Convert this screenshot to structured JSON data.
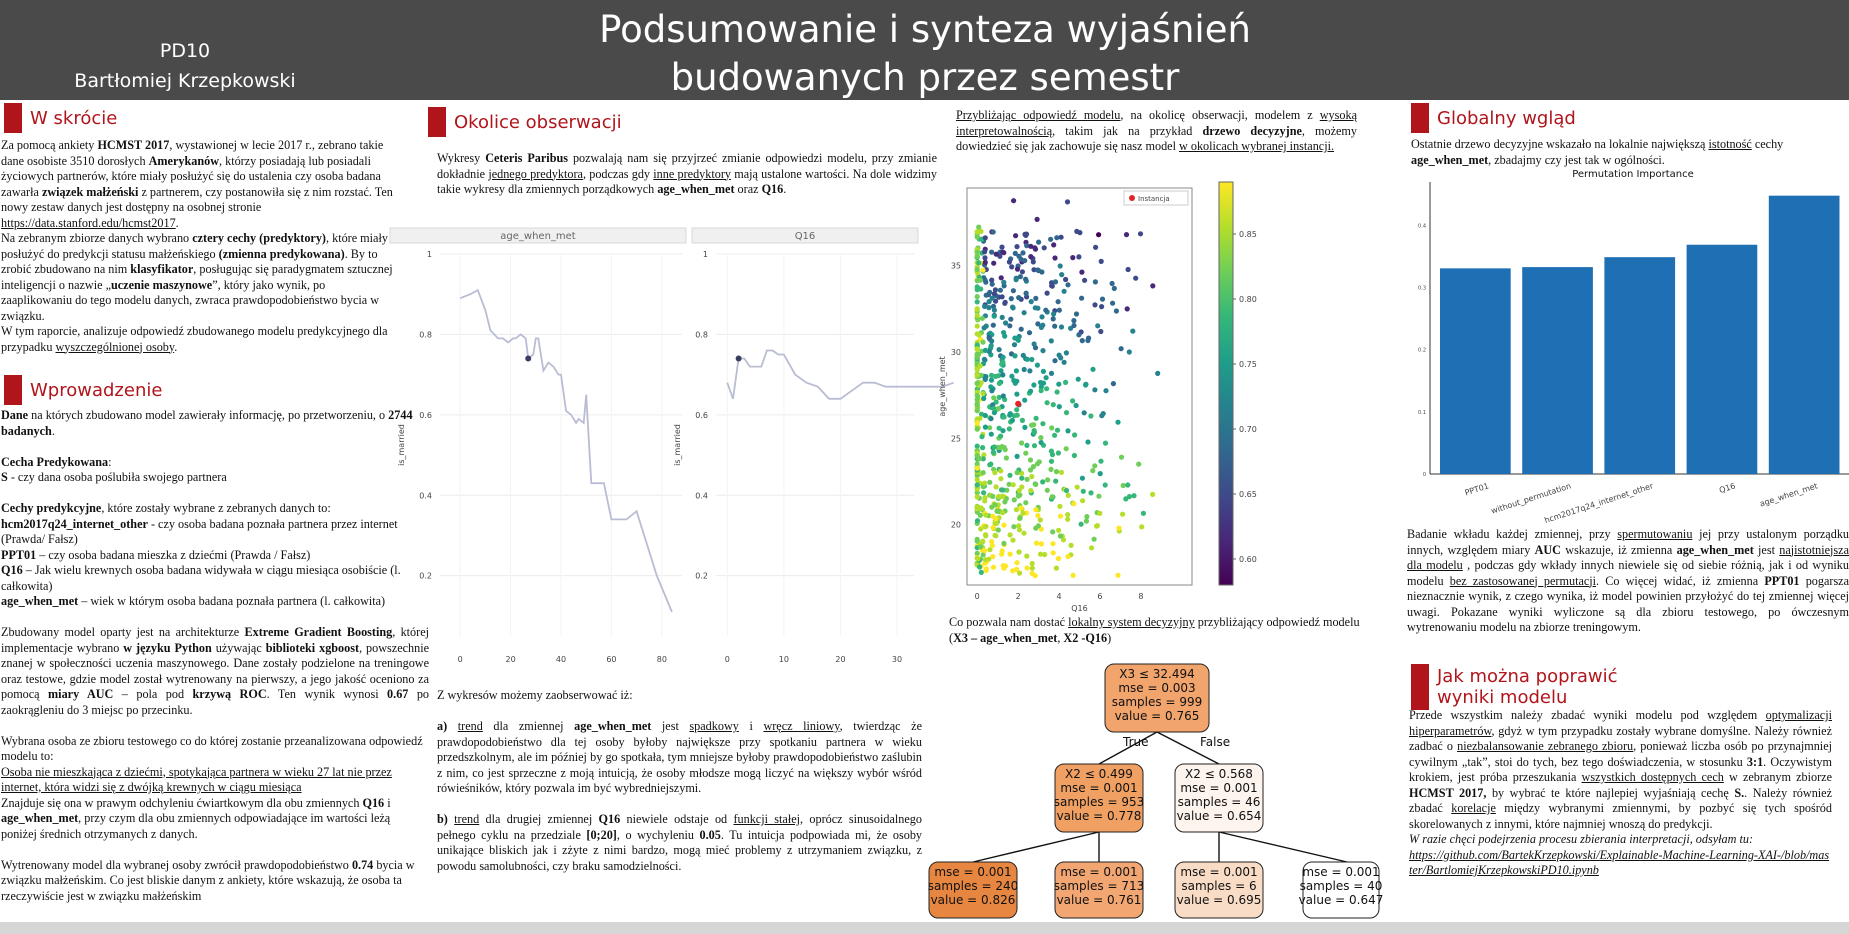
{
  "header": {
    "code": "PD10",
    "author": "Bartłomiej Krzepkowski",
    "title_line1": "Podsumowanie i synteza wyjaśnień",
    "title_line2": "budowanych przez semestr"
  },
  "sections": {
    "skrocie": "W skrócie",
    "wprowadzenie": "Wprowadzenie",
    "okolice": "Okolice obserwacji",
    "globalny": "Globalny wgląd",
    "poprawic_1": "Jak można poprawić",
    "poprawic_2": "wyniki modelu"
  },
  "skrocie": {
    "p1": [
      "Za pomocą ankiety ",
      "HCMST 2017",
      ", wystawionej w lecie 2017 r., zebrano takie dane osobiste 3510 dorosłych ",
      "Amerykanów",
      ", którzy posiadają lub posiadali życiowych partnerów, które miały posłużyć się do ustalenia czy osoba badana zawarła ",
      "związek małżeński",
      " z partnerem, czy postanowiła się z nim rozstać. Ten nowy zestaw danych jest dostępny na osobnej stronie "
    ],
    "link": "https://data.stanford.edu/hcmst2017",
    "p2": [
      "Na zebranym zbiorze danych wybrano ",
      "cztery cechy (predyktory)",
      ", które miały posłużyć do predykcji statusu małżeńskiego ",
      "(zmienna predykowana)",
      ". By to zrobić zbudowano na nim ",
      "klasyfikator",
      ", posługując się paradygmatem sztucznej inteligencji o nazwie „",
      "uczenie maszynowe",
      "”, który jako wynik, po zaaplikowaniu do tego modelu danych, zwraca prawdopodobieństwo bycia w związku."
    ],
    "p3a": "W tym raporcie, analizuje odpowiedź zbudowanego modelu predykcyjnego dla przypadku ",
    "p3b": "wyszczególnionej osoby",
    "p3c": "."
  },
  "wprowadzenie": {
    "dane": [
      "Dane",
      " na których zbudowano model zawierały informację, po przetworzeniu, o ",
      "2744 badanych",
      "."
    ],
    "cecha_title": "Cecha Predykowana",
    "cecha_s": [
      "S",
      " -  czy dana osoba poślubiła swojego partnera"
    ],
    "predyktory_intro": [
      "Cechy predykcyjne",
      ", które zostały wybrane z zebranych danych to:"
    ],
    "pred": [
      [
        "hcm2017q24_internet_other",
        " - czy osoba badana poznała partnera przez internet (Prawda/  Fałsz)"
      ],
      [
        "PPT01",
        " – czy osoba badana mieszka z dziećmi (Prawda / Fałsz)"
      ],
      [
        "Q16",
        " – Jak wielu krewnych osoba badana widywała w ciągu miesiąca osobiście (l. całkowita)"
      ],
      [
        "age_when_met",
        " – wiek w którym osoba badana poznała partnera (l. całkowita)"
      ]
    ],
    "model": [
      "Zbudowany model oparty jest na architekturze ",
      "Extreme Gradient Boosting",
      ", której implementacje wybrano ",
      "w języku Python",
      " używając ",
      "biblioteki xgboost",
      ", powszechnie znanej w społeczności uczenia maszynowego. Dane zostały podzielone na treningowe oraz testowe, gdzie model został wytrenowany na pierwszy, a jego jakość oceniono za pomocą ",
      "miary AUC",
      " – pola pod ",
      "krzywą ROC",
      ". Ten wynik wynosi ",
      "0.67",
      " po zaokrągleniu do 3 miejsc po przecinku."
    ],
    "osoba_intro": "Wybrana osoba ze zbioru testowego co do której zostanie przeanalizowana odpowiedź modelu to:",
    "osoba_desc": "Osoba nie mieszkająca z dziećmi, spotykająca partnera w wieku 27 lat nie przez internet, która widzi się z dwójką krewnych w ciągu miesiąca",
    "osoba_pos": [
      "Znajduje się ona w prawym odchyleniu ćwiartkowym dla obu zmiennych ",
      "Q16",
      " i ",
      "age_when_met",
      ", przy czym dla obu zmiennych odpowiadające im wartości leżą poniżej średnich otrzymanych z danych."
    ],
    "wynik": [
      "Wytrenowany model dla wybranej osoby zwrócił prawdopodobieństwo ",
      "0.74",
      " bycia w związku małżeńskim. Co jest bliskie danym z ankiety, które wskazują, że osoba ta rzeczywiście jest w związku małżeńskim"
    ]
  },
  "okolice": {
    "intro": [
      "Wykresy ",
      "Ceteris Paribus",
      " pozwalają nam się przyjrzeć zmianie odpowiedzi modelu, przy zmianie dokładnie ",
      "jednego predyktora",
      ", podczas gdy ",
      "inne predyktory",
      " mają ustalone wartości. Na dole widzimy takie wykresy dla zmiennych porządkowych ",
      "age_when_met",
      " oraz ",
      "Q16",
      "."
    ],
    "wnioski_intro": "Z wykresów możemy zaobserwować iż:",
    "a": [
      "a) ",
      "trend",
      " dla zmiennej ",
      "age_when_met",
      " jest ",
      "spadkowy",
      " i ",
      "wręcz liniowy",
      ", twierdząc że prawdopodobieństwo dla tej osoby byłoby największe przy spotkaniu partnera w wieku przedszkolnym, ale im później by go spotkała, tym mniejsze byłoby prawdopodobieństwo zaślubin z nim, co jest sprzeczne z moją intuicją, że osoby młodsze mogą liczyć na większy wybór wśród rówieśników, który pozwala im być wybredniejszymi."
    ],
    "b": [
      "b) ",
      "trend",
      " dla drugiej zmiennej ",
      "Q16",
      " niewiele odstaje od ",
      "funkcji stałej",
      ", oprócz sinusoidalnego pełnego cyklu na przedziale  ",
      "[0;20]",
      ", o wychyleniu ",
      "0.05",
      ". Tu intuicja podpowiada mi, że osoby unikające bliskich jak i zżyte z nimi bardzo, mogą mieć problemy z utrzymaniem związku, z powodu samolubności, czy braku samodzielności."
    ]
  },
  "lokalny": {
    "intro": [
      "Przybliżając odpowiedź modelu",
      ", na okolicę obserwacji, modelem z ",
      "wysoką interpretowalnością",
      ", takim jak na przykład ",
      "drzewo decyzyjne",
      ", możemy dowiedzieć się jak zachowuje się nasz model ",
      "w okolicach wybranej instancji."
    ],
    "caption": [
      "Co pozwala nam dostać ",
      "lokalny system decyzyjny",
      " przybliżający odpowiedź modelu (",
      "X3 – age_when_met",
      ", ",
      "X2 -Q16",
      ")"
    ]
  },
  "globalny": {
    "intro": [
      "Ostatnie drzewo decyzyjne wskazało na lokalnie największą ",
      "istotność",
      " cechy ",
      "age_when_met",
      ", zbadajmy czy jest tak w ogólności."
    ],
    "analysis": [
      "Badanie wkładu każdej zmiennej, przy ",
      "spermutowaniu",
      " jej przy ustalonym porządku innych, względem miary ",
      "AUC",
      " wskazuje, iż zmienna ",
      "age_when_met",
      " jest ",
      "najistotniejsza dla modelu",
      " , podczas gdy wkłady innych niewiele się od siebie różnią, jak i od wyniku modelu ",
      "bez zastosowanej permutacji",
      ". Co więcej widać, iż zmienna ",
      "PPT01",
      " pogarsza nieznacznie wynik, z czego wynika, iż model powinien przyłożyć do tej zmiennej więcej uwagi. Pokazane wyniki wyliczone są dla zbioru testowego, po ówczesnym wytrenowaniu modelu na zbiorze treningowym."
    ]
  },
  "poprawic": {
    "text": [
      "Przede wszystkim należy zbadać wyniki modelu pod względem ",
      "optymalizacji hiperparametrów",
      ", gdyż w tym przypadku zostały wybrane domyślne. Należy również zadbać o ",
      "niezbalansowanie zebranego zbioru",
      ", ponieważ liczba osób po przynajmniej cywilnym „tak”, stoi do tych, bez tego doświadczenia, w stosunku ",
      "3:1",
      ". Oczywistym krokiem, jest próba przeszukania ",
      "wszystkich dostępnych cech",
      " w zebranym zbiorze ",
      "HCMST 2017,",
      " by wybrać te które najlepiej wyjaśniają cechę ",
      "S.",
      ". Należy również zbadać ",
      "korelacje",
      " między wybranymi zmiennymi, by pozbyć się tych spośród skorelowanych z innymi, które najmniej wnoszą do predykcji."
    ],
    "italic": "W razie chęci podejrzenia procesu zbierania interpretacji, odsyłam tu:",
    "link": "https://github.com/BartekKrzepkowski/Explainable-Machine-Learning-XAI-/blob/master/BartlomiejKrzepkowskiPD10.ipynb"
  },
  "chart_data": [
    {
      "type": "line",
      "title": "age_when_met",
      "ylabel": "is_married",
      "ylim": [
        0,
        1
      ],
      "yticks": [
        0.2,
        0.4,
        0.6,
        0.8,
        1
      ],
      "xticks": [
        0,
        20,
        40,
        60,
        80
      ],
      "x": [
        0,
        4,
        7,
        10,
        12,
        15,
        17,
        19,
        21,
        22,
        24,
        26,
        27,
        29,
        30,
        31,
        33,
        35,
        37,
        39,
        40,
        42,
        44,
        46,
        47,
        49,
        50,
        52,
        54,
        57,
        60,
        63,
        66,
        70,
        74,
        78,
        84
      ],
      "y": [
        0.89,
        0.9,
        0.91,
        0.86,
        0.81,
        0.79,
        0.79,
        0.78,
        0.79,
        0.79,
        0.8,
        0.79,
        0.74,
        0.75,
        0.79,
        0.79,
        0.71,
        0.73,
        0.72,
        0.7,
        0.7,
        0.61,
        0.6,
        0.58,
        0.59,
        0.58,
        0.65,
        0.43,
        0.43,
        0.43,
        0.34,
        0.34,
        0.34,
        0.36,
        0.28,
        0.2,
        0.11
      ],
      "instance": {
        "x": 27,
        "y": 0.74
      }
    },
    {
      "type": "line",
      "title": "Q16",
      "ylabel": "is_married",
      "ylim": [
        0,
        1
      ],
      "yticks": [
        0.2,
        0.4,
        0.6,
        0.8,
        1
      ],
      "xticks": [
        0,
        10,
        20,
        30
      ],
      "x": [
        0,
        1,
        2,
        3,
        4,
        5,
        6,
        7,
        8,
        9,
        10,
        12,
        14,
        16,
        18,
        20,
        22,
        24,
        26,
        28,
        30,
        32,
        34,
        36,
        38,
        40
      ],
      "y": [
        0.68,
        0.64,
        0.74,
        0.74,
        0.72,
        0.72,
        0.72,
        0.76,
        0.76,
        0.75,
        0.75,
        0.7,
        0.68,
        0.67,
        0.64,
        0.64,
        0.66,
        0.68,
        0.68,
        0.67,
        0.67,
        0.67,
        0.67,
        0.67,
        0.67,
        0.68
      ],
      "instance": {
        "x": 2,
        "y": 0.74
      }
    },
    {
      "type": "scatter",
      "xlabel": "Q16",
      "ylabel": "age_when_met",
      "legend": "Instancja",
      "xticks": [
        0,
        2,
        4,
        6,
        8
      ],
      "yticks": [
        20,
        25,
        30,
        35
      ],
      "xlim": [
        -0.5,
        10.5
      ],
      "ylim": [
        16.5,
        39.5
      ],
      "colorbar_ticks": [
        0.6,
        0.65,
        0.7,
        0.75,
        0.8,
        0.85
      ],
      "colorbar_range": [
        0.58,
        0.89
      ],
      "instance": {
        "x": 2,
        "y": 27
      }
    },
    {
      "type": "bar",
      "title": "Permutation Importance",
      "categories": [
        "PPT01",
        "without_permutation",
        "hcm2017q24_internet_other",
        "Q16",
        "age_when_met"
      ],
      "values": [
        0.331,
        0.333,
        0.349,
        0.369,
        0.448
      ],
      "yticks": [
        0,
        0.1,
        0.2,
        0.3,
        0.4
      ],
      "ylim": [
        0,
        0.47
      ]
    }
  ],
  "tree": {
    "nodes": [
      {
        "id": "root",
        "lines": [
          "X3 ≤ 32.494",
          "mse = 0.003",
          "samples = 999",
          "value = 0.765"
        ],
        "fill": "#f1a46c"
      },
      {
        "id": "l",
        "lines": [
          "X2 ≤ 0.499",
          "mse = 0.001",
          "samples = 953",
          "value = 0.778"
        ],
        "fill": "#f0a063"
      },
      {
        "id": "r",
        "lines": [
          "X2 ≤ 0.568",
          "mse = 0.001",
          "samples = 46",
          "value = 0.654"
        ],
        "fill": "#fdf4ed"
      },
      {
        "id": "ll",
        "lines": [
          "mse = 0.001",
          "samples = 240",
          "value = 0.826"
        ],
        "fill": "#e68640"
      },
      {
        "id": "lr",
        "lines": [
          "mse = 0.001",
          "samples = 713",
          "value = 0.761"
        ],
        "fill": "#f2a672"
      },
      {
        "id": "rl",
        "lines": [
          "mse = 0.001",
          "samples = 6",
          "value = 0.695"
        ],
        "fill": "#f9dcc6"
      },
      {
        "id": "rr",
        "lines": [
          "mse = 0.001",
          "samples = 40",
          "value = 0.647"
        ],
        "fill": "#ffffff"
      }
    ],
    "true_label": "True",
    "false_label": "False"
  },
  "colors": {
    "accent": "#b1151c",
    "header_bg": "#4a4a4a",
    "bar": "#1f6fb5",
    "cp_line": "#b9bdd4"
  }
}
